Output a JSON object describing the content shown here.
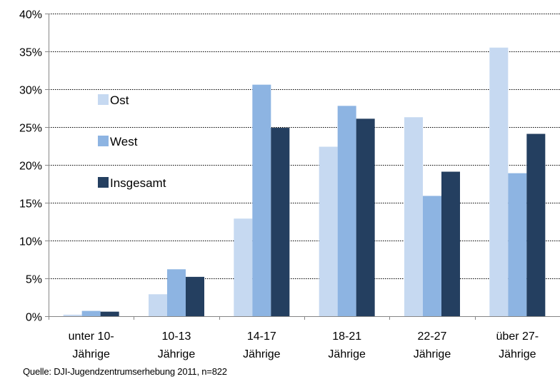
{
  "chart_data": {
    "type": "bar",
    "categories": [
      [
        "unter 10-",
        "Jährige"
      ],
      [
        "10-13",
        "Jährige"
      ],
      [
        "14-17",
        "Jährige"
      ],
      [
        "18-21",
        "Jährige"
      ],
      [
        "22-27",
        "Jährige"
      ],
      [
        "über 27-",
        "Jährige"
      ]
    ],
    "series": [
      {
        "name": "Ost",
        "color": "#c6d9f1",
        "values": [
          0.2,
          2.9,
          12.9,
          22.4,
          26.3,
          35.5
        ]
      },
      {
        "name": "West",
        "color": "#8db4e2",
        "values": [
          0.7,
          6.2,
          30.6,
          27.8,
          15.9,
          18.9
        ]
      },
      {
        "name": "Insgesamt",
        "color": "#243f60",
        "values": [
          0.6,
          5.2,
          24.9,
          26.1,
          19.1,
          24.1
        ]
      }
    ],
    "ylim": [
      0,
      40
    ],
    "yticks": [
      0,
      5,
      10,
      15,
      20,
      25,
      30,
      35,
      40
    ],
    "ytick_format": "%",
    "grid": "horizontal dotted",
    "legend_position": "top-left inside plot"
  },
  "source_note": "Quelle: DJI-Jugendzentrumserhebung 2011, n=822"
}
